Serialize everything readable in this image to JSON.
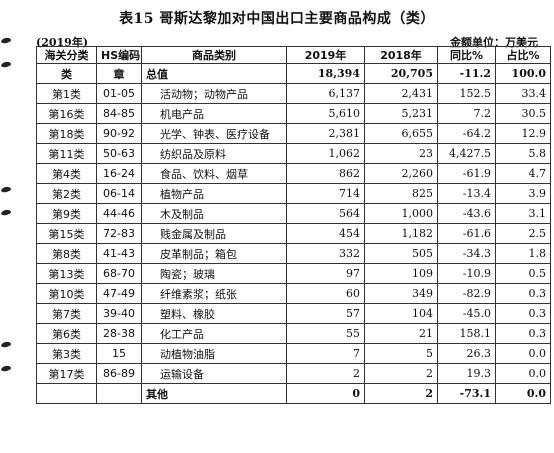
{
  "title": "表15 哥斯达黎加对中国出口主要商品构成（类）",
  "year_label": "(2019年)",
  "unit_label": "金额单位：万美元",
  "headers": {
    "customs_class": "海关分类",
    "hs_code": "HS编码",
    "category": "商品类别",
    "y2019": "2019年",
    "y2018": "2018年",
    "yoy": "同比%",
    "share": "占比%"
  },
  "subheader": {
    "class_label": "类",
    "chapter_label": "章",
    "total_label": "总值",
    "y2019": "18,394",
    "y2018": "20,705",
    "yoy": "-11.2",
    "share": "100.0"
  },
  "rows": [
    {
      "cls": "第1类",
      "hs": "01-05",
      "name": "活动物；动物产品",
      "y2019": "6,137",
      "y2018": "2,431",
      "yoy": "152.5",
      "share": "33.4"
    },
    {
      "cls": "第16类",
      "hs": "84-85",
      "name": "机电产品",
      "y2019": "5,610",
      "y2018": "5,231",
      "yoy": "7.2",
      "share": "30.5"
    },
    {
      "cls": "第18类",
      "hs": "90-92",
      "name": "光学、钟表、医疗设备",
      "y2019": "2,381",
      "y2018": "6,655",
      "yoy": "-64.2",
      "share": "12.9"
    },
    {
      "cls": "第11类",
      "hs": "50-63",
      "name": "纺织品及原料",
      "y2019": "1,062",
      "y2018": "23",
      "yoy": "4,427.5",
      "share": "5.8"
    },
    {
      "cls": "第4类",
      "hs": "16-24",
      "name": "食品、饮料、烟草",
      "y2019": "862",
      "y2018": "2,260",
      "yoy": "-61.9",
      "share": "4.7"
    },
    {
      "cls": "第2类",
      "hs": "06-14",
      "name": "植物产品",
      "y2019": "714",
      "y2018": "825",
      "yoy": "-13.4",
      "share": "3.9"
    },
    {
      "cls": "第9类",
      "hs": "44-46",
      "name": "木及制品",
      "y2019": "564",
      "y2018": "1,000",
      "yoy": "-43.6",
      "share": "3.1"
    },
    {
      "cls": "第15类",
      "hs": "72-83",
      "name": "贱金属及制品",
      "y2019": "454",
      "y2018": "1,182",
      "yoy": "-61.6",
      "share": "2.5"
    },
    {
      "cls": "第8类",
      "hs": "41-43",
      "name": "皮革制品；箱包",
      "y2019": "332",
      "y2018": "505",
      "yoy": "-34.3",
      "share": "1.8"
    },
    {
      "cls": "第13类",
      "hs": "68-70",
      "name": "陶瓷；玻璃",
      "y2019": "97",
      "y2018": "109",
      "yoy": "-10.9",
      "share": "0.5"
    },
    {
      "cls": "第10类",
      "hs": "47-49",
      "name": "纤维素浆；纸张",
      "y2019": "60",
      "y2018": "349",
      "yoy": "-82.9",
      "share": "0.3"
    },
    {
      "cls": "第7类",
      "hs": "39-40",
      "name": "塑料、橡胶",
      "y2019": "57",
      "y2018": "104",
      "yoy": "-45.0",
      "share": "0.3"
    },
    {
      "cls": "第6类",
      "hs": "28-38",
      "name": "化工产品",
      "y2019": "55",
      "y2018": "21",
      "yoy": "158.1",
      "share": "0.3"
    },
    {
      "cls": "第3类",
      "hs": "15",
      "name": "动植物油脂",
      "y2019": "7",
      "y2018": "5",
      "yoy": "26.3",
      "share": "0.0"
    },
    {
      "cls": "第17类",
      "hs": "86-89",
      "name": "运输设备",
      "y2019": "2",
      "y2018": "2",
      "yoy": "19.3",
      "share": "0.0"
    }
  ],
  "other": {
    "cls": "",
    "hs": "",
    "name": "其他",
    "y2019": "0",
    "y2018": "2",
    "yoy": "-73.1",
    "share": "0.0"
  }
}
